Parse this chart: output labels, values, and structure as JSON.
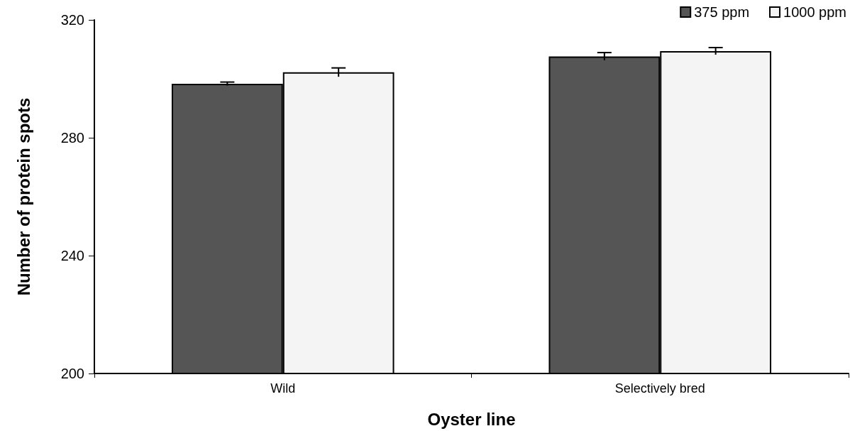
{
  "chart_data": {
    "type": "bar",
    "xlabel": "Oyster line",
    "ylabel": "Number of protein spots",
    "categories": [
      "Wild",
      "Selectively bred"
    ],
    "series": [
      {
        "name": "375 ppm",
        "color": "#555555",
        "values": [
          298.3,
          307.6
        ],
        "errors": [
          0.6,
          1.3
        ]
      },
      {
        "name": "1000 ppm",
        "color": "#f4f4f4",
        "values": [
          302.2,
          309.4
        ],
        "errors": [
          1.5,
          1.2
        ]
      }
    ],
    "ylim": [
      200,
      320
    ],
    "yticks": [
      200,
      240,
      280,
      320
    ],
    "grid": false,
    "legend": "top right"
  }
}
